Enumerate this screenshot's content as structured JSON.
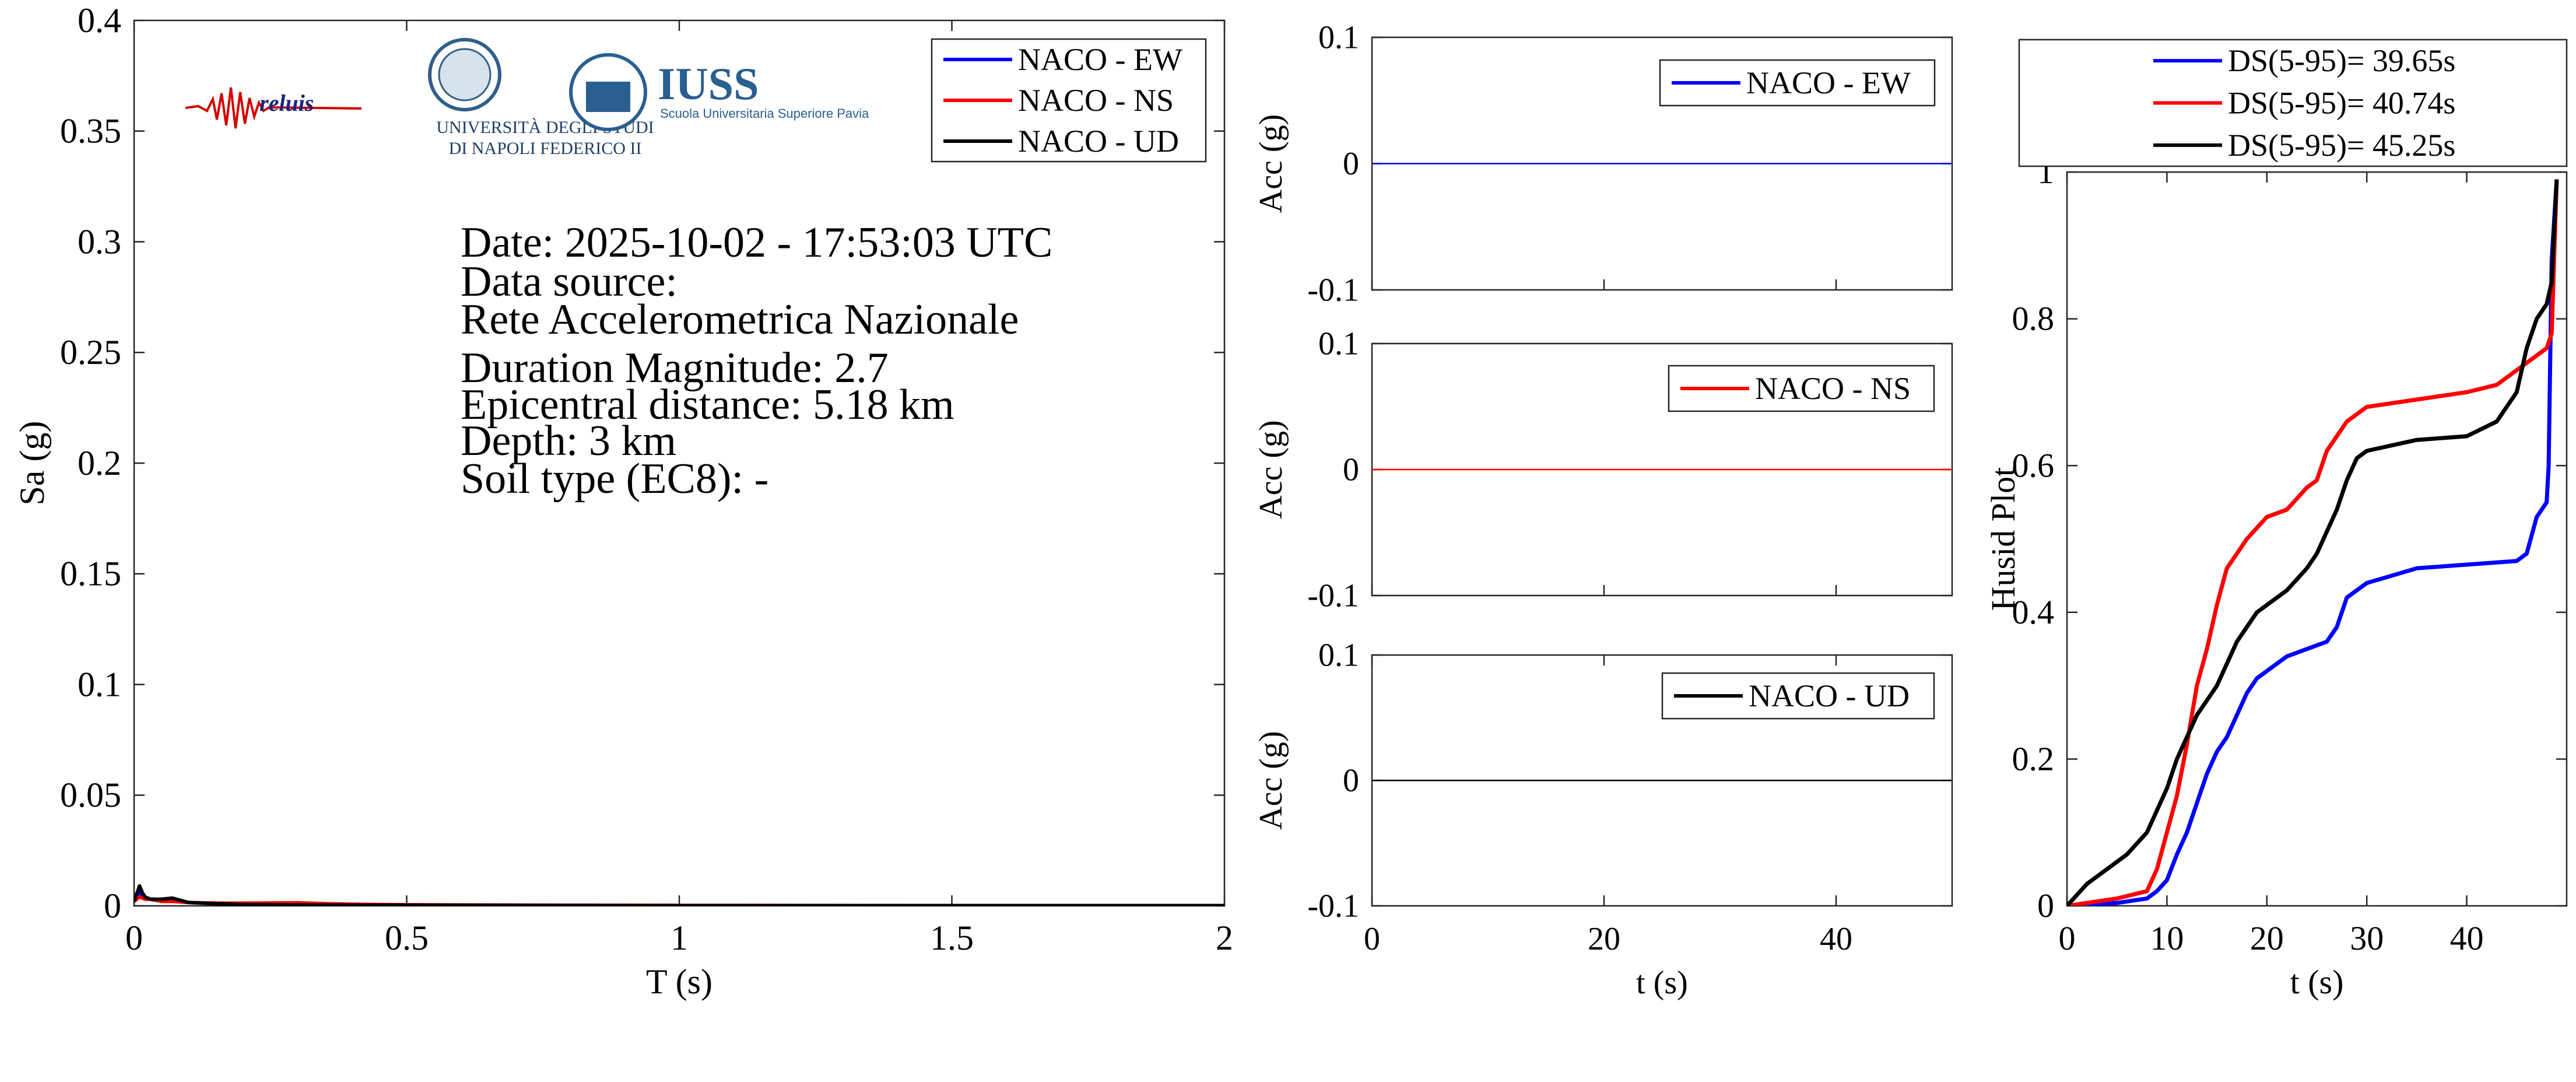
{
  "info": {
    "date": "Date: 2025-10-02 - 17:53:03 UTC",
    "source_label": "Data source:",
    "source": "Rete Accelerometrica Nazionale",
    "magnitude": "Duration Magnitude: 2.7",
    "distance": "Epicentral distance: 5.18 km",
    "depth": "Depth: 3 km",
    "soil": "Soil type (EC8): -"
  },
  "logos": {
    "reluis": "reluis",
    "unina_line1": "UNIVERSITÀ DEGLI STUDI",
    "unina_line2": "DI NAPOLI FEDERICO II",
    "iuss": "IUSS",
    "iuss_sub": "Scuola Universitaria Superiore Pavia"
  },
  "colors": {
    "ew": "#0000ff",
    "ns": "#ff0000",
    "ud": "#000000"
  },
  "chart_data": [
    {
      "type": "line",
      "id": "spectrum",
      "xlabel": "T (s)",
      "ylabel": "Sa (g)",
      "xlim": [
        0,
        2
      ],
      "ylim": [
        0,
        0.4
      ],
      "xticks": [
        0,
        0.5,
        1,
        1.5,
        2
      ],
      "xtick_labels": [
        "0",
        "0.5",
        "1",
        "1.5",
        "2"
      ],
      "yticks": [
        0,
        0.05,
        0.1,
        0.15,
        0.2,
        0.25,
        0.3,
        0.35,
        0.4
      ],
      "ytick_labels": [
        "0",
        "0.05",
        "0.1",
        "0.15",
        "0.2",
        "0.25",
        "0.3",
        "0.35",
        "0.4"
      ],
      "legend": "top-right",
      "series": [
        {
          "name": "NACO - EW",
          "color": "#0000ff",
          "x": [
            0,
            0.01,
            0.02,
            0.03,
            0.05,
            0.07,
            0.1,
            0.15,
            0.2,
            0.3,
            0.4,
            0.5,
            0.75,
            1,
            1.5,
            2
          ],
          "y": [
            0.002,
            0.006,
            0.004,
            0.003,
            0.002,
            0.003,
            0.0015,
            0.001,
            0.0008,
            0.0006,
            0.0004,
            0.0003,
            0.0002,
            0.0001,
            0.0001,
            0.0001
          ]
        },
        {
          "name": "NACO - NS",
          "color": "#ff0000",
          "x": [
            0,
            0.01,
            0.02,
            0.03,
            0.05,
            0.07,
            0.1,
            0.15,
            0.2,
            0.3,
            0.35,
            0.4,
            0.5,
            0.75,
            1,
            1.5,
            2
          ],
          "y": [
            0.002,
            0.004,
            0.003,
            0.003,
            0.002,
            0.002,
            0.0015,
            0.0012,
            0.0012,
            0.0014,
            0.001,
            0.0007,
            0.0005,
            0.0003,
            0.0002,
            0.0001,
            0.0001
          ]
        },
        {
          "name": "NACO - UD",
          "color": "#000000",
          "x": [
            0,
            0.01,
            0.015,
            0.02,
            0.03,
            0.05,
            0.07,
            0.1,
            0.15,
            0.2,
            0.3,
            0.5,
            0.75,
            1,
            1.5,
            2
          ],
          "y": [
            0.002,
            0.009,
            0.006,
            0.004,
            0.003,
            0.003,
            0.0035,
            0.0015,
            0.001,
            0.0006,
            0.0004,
            0.0003,
            0.0002,
            0.0001,
            0.0001,
            0.0001
          ]
        }
      ]
    },
    {
      "type": "line",
      "id": "acc_ew",
      "xlabel": "",
      "ylabel": "Acc (g)",
      "xlim": [
        0,
        50
      ],
      "ylim": [
        -0.1,
        0.1
      ],
      "yticks": [
        -0.1,
        0,
        0.1
      ],
      "ytick_labels": [
        "-0.1",
        "0",
        "0.1"
      ],
      "legend": "top-right",
      "series": [
        {
          "name": "NACO - EW",
          "color": "#0000ff",
          "x": [
            0,
            50
          ],
          "y": [
            0,
            0
          ]
        }
      ]
    },
    {
      "type": "line",
      "id": "acc_ns",
      "xlabel": "",
      "ylabel": "Acc (g)",
      "xlim": [
        0,
        50
      ],
      "ylim": [
        -0.1,
        0.1
      ],
      "yticks": [
        -0.1,
        0,
        0.1
      ],
      "ytick_labels": [
        "-0.1",
        "0",
        "0.1"
      ],
      "legend": "top-right",
      "series": [
        {
          "name": "NACO - NS",
          "color": "#ff0000",
          "x": [
            0,
            50
          ],
          "y": [
            0,
            0
          ]
        }
      ]
    },
    {
      "type": "line",
      "id": "acc_ud",
      "xlabel": "t (s)",
      "ylabel": "Acc (g)",
      "xlim": [
        0,
        50
      ],
      "ylim": [
        -0.1,
        0.1
      ],
      "xticks": [
        0,
        20,
        40
      ],
      "xtick_labels": [
        "0",
        "20",
        "40"
      ],
      "yticks": [
        -0.1,
        0,
        0.1
      ],
      "ytick_labels": [
        "-0.1",
        "0",
        "0.1"
      ],
      "legend": "top-right",
      "series": [
        {
          "name": "NACO - UD",
          "color": "#000000",
          "x": [
            0,
            50
          ],
          "y": [
            0,
            0
          ]
        }
      ]
    },
    {
      "type": "line",
      "id": "husid",
      "xlabel": "t (s)",
      "ylabel": "Husid Plot",
      "xlim": [
        0,
        50
      ],
      "ylim": [
        0,
        1
      ],
      "xticks": [
        0,
        10,
        20,
        30,
        40
      ],
      "xtick_labels": [
        "0",
        "10",
        "20",
        "30",
        "40"
      ],
      "yticks": [
        0,
        0.2,
        0.4,
        0.6,
        0.8,
        1
      ],
      "ytick_labels": [
        "0",
        "0.2",
        "0.4",
        "0.6",
        "0.8",
        "1"
      ],
      "legend": "top",
      "series": [
        {
          "name": "DS(5-95)= 39.65s",
          "color": "#0000ff",
          "x": [
            0,
            5,
            8,
            9,
            10,
            11,
            12,
            13,
            14,
            15,
            16,
            17,
            18,
            19,
            20,
            22,
            24,
            26,
            27,
            28,
            30,
            35,
            40,
            45,
            46,
            47,
            48,
            48.2,
            48.5,
            49
          ],
          "y": [
            0,
            0.004,
            0.01,
            0.02,
            0.035,
            0.07,
            0.1,
            0.14,
            0.18,
            0.21,
            0.23,
            0.26,
            0.29,
            0.31,
            0.32,
            0.34,
            0.35,
            0.36,
            0.38,
            0.42,
            0.44,
            0.46,
            0.465,
            0.47,
            0.48,
            0.53,
            0.55,
            0.6,
            0.88,
            0.99
          ]
        },
        {
          "name": "DS(5-95)= 40.74s",
          "color": "#ff0000",
          "x": [
            0,
            5,
            8,
            9,
            10,
            11,
            12,
            13,
            14,
            15,
            16,
            17,
            18,
            20,
            22,
            24,
            25,
            26,
            27,
            28,
            29,
            30,
            35,
            40,
            43,
            45,
            47,
            48,
            48.5,
            49
          ],
          "y": [
            0,
            0.01,
            0.02,
            0.05,
            0.1,
            0.15,
            0.22,
            0.3,
            0.35,
            0.41,
            0.46,
            0.48,
            0.5,
            0.53,
            0.54,
            0.57,
            0.58,
            0.62,
            0.64,
            0.66,
            0.67,
            0.68,
            0.69,
            0.7,
            0.71,
            0.73,
            0.75,
            0.76,
            0.78,
            0.99
          ]
        },
        {
          "name": "DS(5-95)= 45.25s",
          "color": "#000000",
          "x": [
            0,
            2,
            4,
            6,
            8,
            10,
            11,
            12,
            13,
            14,
            15,
            16,
            17,
            18,
            19,
            20,
            22,
            24,
            25,
            26,
            27,
            28,
            29,
            30,
            35,
            40,
            43,
            45,
            46,
            47,
            48,
            48.5,
            49
          ],
          "y": [
            0,
            0.03,
            0.05,
            0.07,
            0.1,
            0.16,
            0.2,
            0.23,
            0.26,
            0.28,
            0.3,
            0.33,
            0.36,
            0.38,
            0.4,
            0.41,
            0.43,
            0.46,
            0.48,
            0.51,
            0.54,
            0.58,
            0.61,
            0.62,
            0.635,
            0.64,
            0.66,
            0.7,
            0.76,
            0.8,
            0.82,
            0.85,
            0.99
          ]
        }
      ]
    }
  ]
}
